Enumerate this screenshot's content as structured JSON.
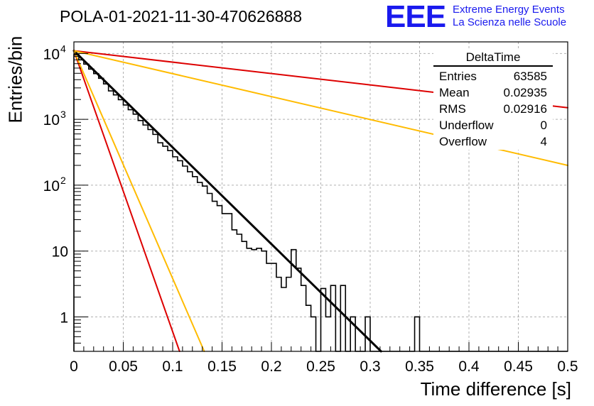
{
  "chart_data": {
    "type": "histogram",
    "title": "POLA-01-2021-11-30-470626888",
    "xlabel": "Time difference [s]",
    "ylabel": "Entries/bin",
    "xlim": [
      0,
      0.5
    ],
    "ylim": [
      0.3,
      15000
    ],
    "y_scale": "log",
    "grid": true,
    "x_ticks": [
      "0",
      "0.05",
      "0.1",
      "0.15",
      "0.2",
      "0.25",
      "0.3",
      "0.35",
      "0.4",
      "0.45",
      "0.5"
    ],
    "y_ticks": [
      {
        "value": 1,
        "base": "1",
        "exp": ""
      },
      {
        "value": 10,
        "base": "10",
        "exp": ""
      },
      {
        "value": 100,
        "base": "10",
        "exp": "2"
      },
      {
        "value": 1000,
        "base": "10",
        "exp": "3"
      },
      {
        "value": 10000,
        "base": "10",
        "exp": "4"
      }
    ],
    "histogram": {
      "bin_width": 0.005,
      "x_start": 0,
      "counts": [
        9600,
        8000,
        6900,
        5800,
        4950,
        4200,
        3450,
        2700,
        2350,
        1990,
        1650,
        1400,
        1200,
        960,
        820,
        700,
        590,
        440,
        390,
        335,
        270,
        235,
        195,
        160,
        135,
        110,
        97,
        75,
        57,
        49,
        37,
        37,
        21,
        18,
        14,
        11,
        10.5,
        11,
        10,
        6.5,
        6.5,
        4,
        2.8,
        4,
        10.5,
        5.5,
        3,
        1.5,
        1,
        0,
        2.7,
        1,
        3,
        0,
        3,
        0,
        1,
        0,
        0,
        1,
        0,
        0,
        0,
        0,
        0,
        0,
        0,
        0,
        0,
        1,
        0,
        0,
        0,
        0,
        0,
        0,
        0,
        0,
        0,
        0,
        0,
        0,
        0,
        0,
        0,
        0,
        0,
        0,
        0,
        0,
        0,
        0,
        0,
        0,
        0,
        0,
        0,
        0,
        0,
        0
      ]
    },
    "fits": [
      {
        "color": "#000000",
        "x": [
          0,
          0.311
        ],
        "y": [
          11000,
          0.3
        ]
      },
      {
        "color": "#dd0000",
        "x": [
          0,
          0.5
        ],
        "y": [
          11000,
          1500
        ]
      },
      {
        "color": "#ffbb00",
        "x": [
          0,
          0.5
        ],
        "y": [
          11000,
          200
        ]
      },
      {
        "color": "#dd0000",
        "x": [
          0,
          0.107
        ],
        "y": [
          11000,
          0.3
        ]
      },
      {
        "color": "#ffbb00",
        "x": [
          0,
          0.132
        ],
        "y": [
          11000,
          0.3
        ]
      }
    ],
    "stats": {
      "name": "DeltaTime",
      "rows": [
        {
          "label": "Entries",
          "value": "63585"
        },
        {
          "label": "Mean",
          "value": "0.02935"
        },
        {
          "label": "RMS",
          "value": "0.02916"
        },
        {
          "label": "Underflow",
          "value": "0"
        },
        {
          "label": "Overflow",
          "value": "4"
        }
      ]
    }
  },
  "logo": {
    "text": "EEE",
    "line1": "Extreme Energy Events",
    "line2": "La Scienza nelle Scuole"
  }
}
